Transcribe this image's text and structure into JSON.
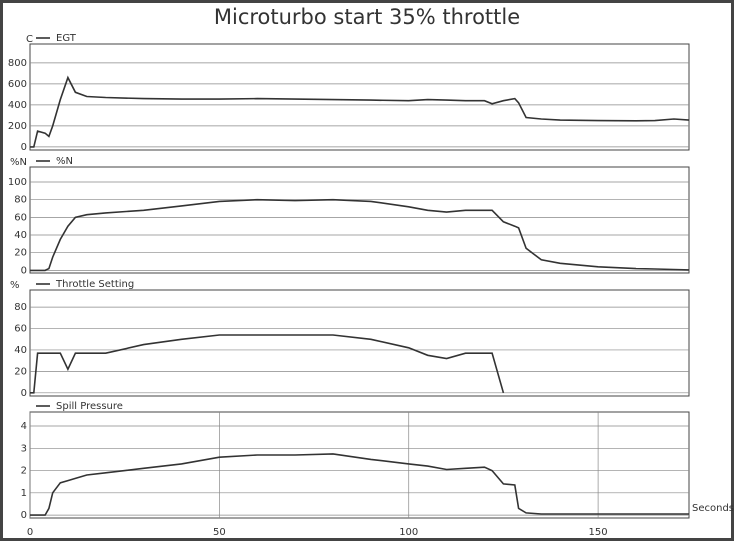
{
  "chart_data": {
    "type": "line",
    "title": "Microturbo start 35% throttle",
    "x": [
      0,
      1,
      2,
      4,
      5,
      6,
      8,
      10,
      12,
      15,
      20,
      30,
      40,
      50,
      60,
      70,
      80,
      90,
      100,
      105,
      110,
      115,
      120,
      122,
      125,
      128,
      129,
      131,
      135,
      140,
      150,
      160,
      165,
      170,
      174
    ],
    "xlim": [
      0,
      174
    ],
    "xticks": [
      0,
      50,
      100,
      150
    ],
    "xlabel": "Seconds",
    "panels": [
      {
        "name": "EGT",
        "ylabel": "C",
        "color": "#333333",
        "grid": true,
        "xgrid": false,
        "ylim": [
          -30,
          980
        ],
        "yticks": [
          0,
          200,
          400,
          600,
          800
        ],
        "values": [
          0,
          0,
          150,
          130,
          100,
          200,
          450,
          660,
          520,
          480,
          470,
          460,
          455,
          455,
          460,
          455,
          450,
          445,
          440,
          450,
          445,
          440,
          440,
          410,
          440,
          460,
          420,
          280,
          265,
          255,
          250,
          248,
          250,
          265,
          255
        ]
      },
      {
        "name": "%N",
        "ylabel": "%N",
        "color": "#333333",
        "grid": true,
        "xgrid": false,
        "ylim": [
          -3,
          117
        ],
        "yticks": [
          0,
          20,
          40,
          60,
          80,
          100
        ],
        "values": [
          0,
          0,
          0,
          0,
          2,
          15,
          35,
          50,
          60,
          63,
          65,
          68,
          73,
          78,
          80,
          79,
          80,
          78,
          72,
          68,
          66,
          68,
          68,
          68,
          55,
          50,
          48,
          25,
          12,
          8,
          4,
          2,
          1.5,
          1,
          0.5
        ]
      },
      {
        "name": "Throttle Setting",
        "ylabel": "%",
        "color": "#333333",
        "grid": true,
        "xgrid": false,
        "ylim": [
          -3,
          96
        ],
        "yticks": [
          0,
          20,
          40,
          60,
          80
        ],
        "values": [
          0,
          0,
          37,
          37,
          37,
          37,
          37,
          22,
          37,
          37,
          37,
          45,
          50,
          54,
          54,
          54,
          54,
          50,
          42,
          35,
          32,
          37,
          37,
          37,
          0,
          null,
          null,
          null,
          null,
          null,
          null,
          null,
          null,
          null,
          null
        ]
      },
      {
        "name": "Spill Pressure",
        "color": "#333333",
        "grid": true,
        "xgrid": true,
        "ylim": [
          -0.13,
          4.63
        ],
        "yticks": [
          0,
          1,
          2,
          3,
          4
        ],
        "values": [
          0,
          0,
          0,
          0,
          0.3,
          1.0,
          1.45,
          1.55,
          1.65,
          1.8,
          1.9,
          2.1,
          2.3,
          2.6,
          2.7,
          2.7,
          2.75,
          2.5,
          2.3,
          2.2,
          2.05,
          2.1,
          2.15,
          2.0,
          1.4,
          1.35,
          0.3,
          0.1,
          0.05,
          0.05,
          0.05,
          0.05,
          0.05,
          0.05,
          0.05
        ]
      }
    ]
  }
}
